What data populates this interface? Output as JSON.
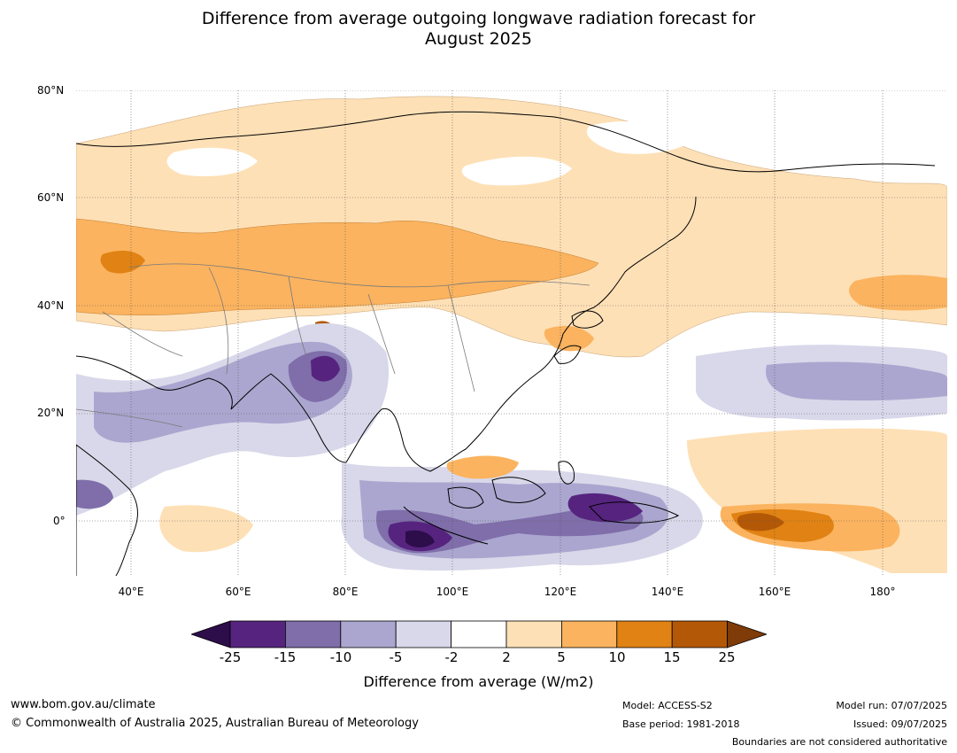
{
  "title": {
    "line1": "Difference from average outgoing longwave radiation forecast for",
    "line2": "August 2025"
  },
  "map": {
    "region": "Asia and western Pacific",
    "lat_labels": [
      "80°N",
      "60°N",
      "40°N",
      "20°N",
      "0°"
    ],
    "lon_labels": [
      "40°E",
      "60°E",
      "80°E",
      "100°E",
      "120°E",
      "140°E",
      "160°E",
      "180°"
    ],
    "features": [
      "coastlines",
      "country boundaries",
      "dotted graticule"
    ]
  },
  "legend": {
    "title": "Difference from average (W/m2)",
    "ticks": [
      "-25",
      "-15",
      "-10",
      "-5",
      "-2",
      "2",
      "5",
      "10",
      "15",
      "25"
    ],
    "colors": [
      "#2d0d4a",
      "#56247f",
      "#7f6eaa",
      "#aba6cf",
      "#d8d8ea",
      "#ffffff",
      "#fee0b6",
      "#fbb35f",
      "#e08214",
      "#b35806",
      "#7f3b08"
    ]
  },
  "footer": {
    "website": "www.bom.gov.au/climate",
    "copyright": "© Commonwealth of Australia 2025, Australian Bureau of Meteorology",
    "model": "Model: ACCESS-S2",
    "base_period": "Base period: 1981-2018",
    "model_run": "Model run: 07/07/2025",
    "issued": "Issued: 09/07/2025",
    "disclaimer": "Boundaries are not considered authoritative"
  }
}
